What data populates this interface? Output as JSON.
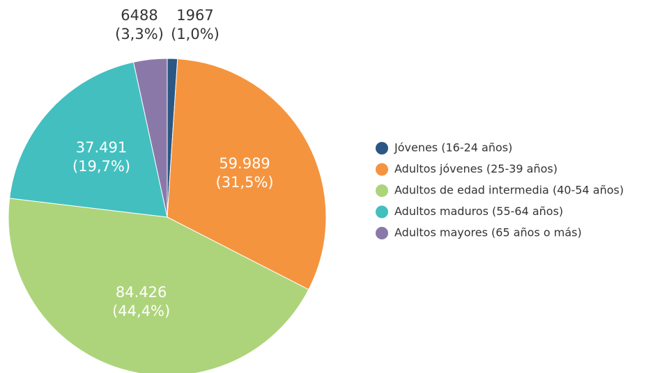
{
  "chart_data": {
    "type": "pie",
    "categories": [
      "Jóvenes (16-24 años)",
      "Adultos jóvenes (25-39 años)",
      "Adultos de edad intermedia (40-54 años)",
      "Adultos maduros (55-64 años)",
      "Adultos mayores (65 años o más)"
    ],
    "values": [
      1967,
      59989,
      84426,
      37491,
      6488
    ],
    "value_labels": [
      "1967",
      "59.989",
      "84.426",
      "37.491",
      "6488"
    ],
    "percentages": [
      1.0,
      31.5,
      44.4,
      19.7,
      3.3
    ],
    "percentage_labels": [
      "(1,0%)",
      "(31,5%)",
      "(44,4%)",
      "(19,7%)",
      "(3,3%)"
    ],
    "colors": [
      "#2a5783",
      "#f5943f",
      "#add47a",
      "#43bfbf",
      "#8a79a8"
    ],
    "legend": "right"
  }
}
